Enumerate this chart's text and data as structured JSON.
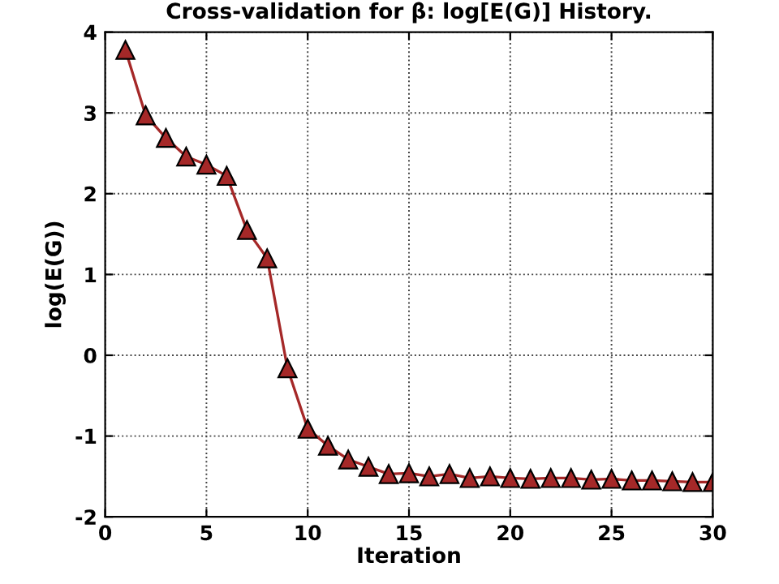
{
  "chart_data": {
    "type": "line",
    "title": "Cross-validation for β: log[E(G)] History.",
    "xlabel": "Iteration",
    "ylabel": "log(E(G))",
    "x": [
      1,
      2,
      3,
      4,
      5,
      6,
      7,
      8,
      9,
      10,
      11,
      12,
      13,
      14,
      15,
      16,
      17,
      18,
      19,
      20,
      21,
      22,
      23,
      24,
      25,
      26,
      27,
      28,
      29,
      30
    ],
    "series": [
      {
        "color": "#a52828",
        "values": [
          3.78,
          2.97,
          2.69,
          2.46,
          2.36,
          2.22,
          1.55,
          1.2,
          -0.16,
          -0.91,
          -1.12,
          -1.29,
          -1.38,
          -1.47,
          -1.46,
          -1.5,
          -1.47,
          -1.52,
          -1.5,
          -1.52,
          -1.53,
          -1.52,
          -1.52,
          -1.54,
          -1.53,
          -1.55,
          -1.55,
          -1.56,
          -1.57,
          -1.57
        ]
      }
    ],
    "xlim": [
      0,
      30
    ],
    "ylim": [
      -2,
      4
    ],
    "xticks": [
      0,
      5,
      10,
      15,
      20,
      25,
      30
    ],
    "yticks": [
      -2,
      -1,
      0,
      1,
      2,
      3,
      4
    ],
    "grid": true,
    "marker": "triangle",
    "line_style": "solid"
  }
}
